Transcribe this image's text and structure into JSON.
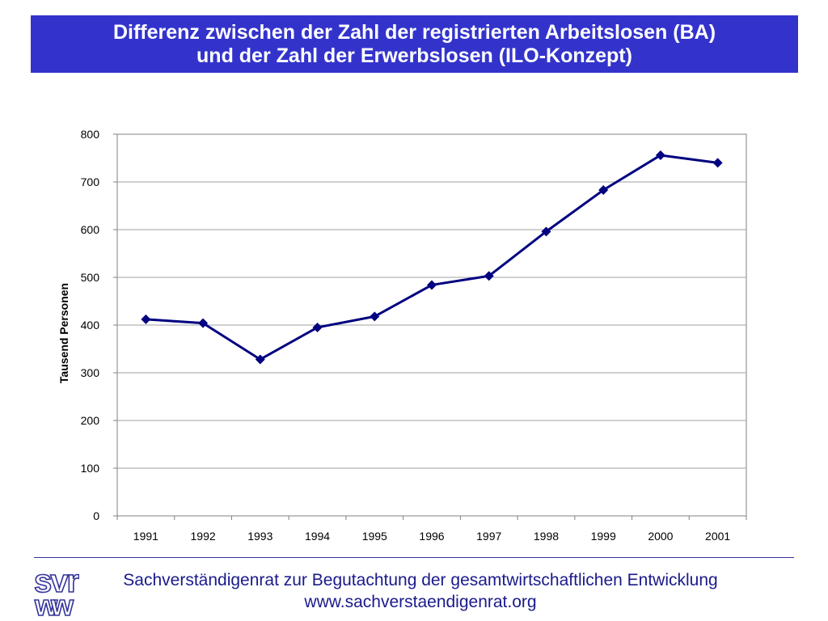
{
  "slide": {
    "title_line1": "Differenz zwischen der Zahl der registrierten Arbeitslosen (BA)",
    "title_line2": "und der Zahl der Erwerbslosen (ILO-Konzept)"
  },
  "footer": {
    "organization": "Sachverständigenrat zur Begutachtung der gesamtwirtschaftlichen Entwicklung",
    "url": "www.sachverstaendigenrat.org",
    "logo_text": "svr"
  },
  "colors": {
    "banner": "#3333cc",
    "series_line": "#000080",
    "footer_text": "#1a1a8c"
  },
  "chart_data": {
    "type": "line",
    "title": "",
    "xlabel": "",
    "ylabel": "Tausend Personen",
    "categories": [
      "1991",
      "1992",
      "1993",
      "1994",
      "1995",
      "1996",
      "1997",
      "1998",
      "1999",
      "2000",
      "2001"
    ],
    "series": [
      {
        "values": [
          412,
          404,
          328,
          395,
          418,
          484,
          503,
          596,
          683,
          756,
          740
        ]
      }
    ],
    "ylim": [
      0,
      800
    ],
    "yticks": [
      0,
      100,
      200,
      300,
      400,
      500,
      600,
      700,
      800
    ],
    "grid": true,
    "legend": "none",
    "marker": "diamond"
  }
}
